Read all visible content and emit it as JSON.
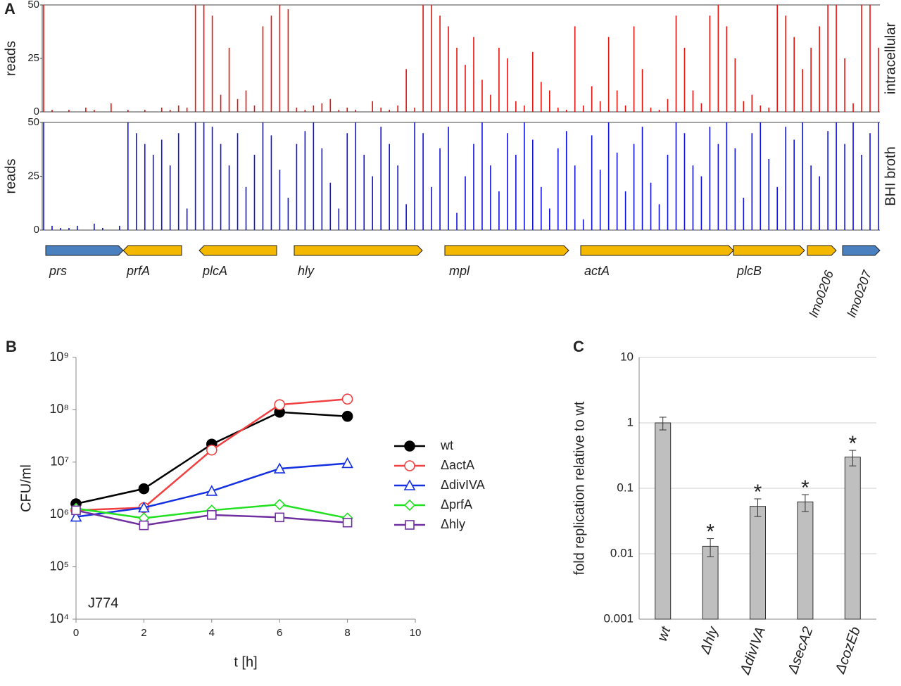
{
  "chart_data": [
    {
      "type": "track",
      "panel": "A",
      "ylabel": "reads",
      "ylim": [
        0,
        50
      ],
      "yticks": [
        0,
        25,
        50
      ],
      "series": [
        {
          "name": "intracellular",
          "color": "#e8120c",
          "values": [
            50,
            1,
            0,
            1,
            0,
            2,
            1,
            0,
            4,
            0,
            1,
            0,
            1,
            0,
            2,
            1,
            3,
            2,
            50,
            50,
            45,
            8,
            30,
            6,
            10,
            3,
            40,
            45,
            50,
            48,
            2,
            1,
            3,
            4,
            6,
            1,
            2,
            1,
            0,
            5,
            2,
            1,
            3,
            20,
            2,
            50,
            50,
            45,
            40,
            30,
            22,
            35,
            15,
            8,
            30,
            25,
            5,
            3,
            28,
            14,
            10,
            2,
            1,
            40,
            3,
            12,
            5,
            35,
            10,
            3,
            40,
            20,
            2,
            1,
            6,
            45,
            30,
            10,
            4,
            45,
            50,
            40,
            25,
            5,
            8,
            3,
            2,
            50,
            45,
            35,
            20,
            30,
            40,
            50,
            50,
            25,
            4,
            50,
            50,
            30
          ]
        },
        {
          "name": "BHI broth",
          "color": "#1010e0",
          "values": [
            50,
            2,
            1,
            1,
            2,
            0,
            3,
            1,
            0,
            2,
            50,
            45,
            40,
            35,
            42,
            30,
            45,
            10,
            50,
            50,
            48,
            40,
            30,
            45,
            20,
            35,
            50,
            44,
            28,
            15,
            40,
            46,
            50,
            38,
            22,
            10,
            45,
            50,
            35,
            25,
            48,
            40,
            30,
            12,
            50,
            45,
            20,
            38,
            48,
            8,
            25,
            40,
            50,
            30,
            18,
            45,
            35,
            50,
            42,
            20,
            10,
            38,
            46,
            30,
            5,
            44,
            28,
            50,
            36,
            18,
            40,
            48,
            22,
            12,
            35,
            50,
            45,
            30,
            25,
            48,
            40,
            50,
            38,
            15,
            45,
            50,
            33,
            20,
            48,
            42,
            50,
            30,
            25,
            46,
            50,
            40,
            50,
            35,
            45,
            50
          ]
        }
      ],
      "genes": [
        {
          "label": "prs",
          "color": "#4a7fc0",
          "direction": "right"
        },
        {
          "label": "prfA",
          "color": "#f5b800",
          "direction": "left"
        },
        {
          "label": "plcA",
          "color": "#f5b800",
          "direction": "left"
        },
        {
          "label": "hly",
          "color": "#f5b800",
          "direction": "right"
        },
        {
          "label": "mpl",
          "color": "#f5b800",
          "direction": "right"
        },
        {
          "label": "actA",
          "color": "#f5b800",
          "direction": "right"
        },
        {
          "label": "plcB",
          "color": "#f5b800",
          "direction": "right"
        },
        {
          "label": "lmo0206",
          "color": "#f5b800",
          "direction": "right"
        },
        {
          "label": "lmo0207",
          "color": "#4a7fc0",
          "direction": "right"
        }
      ]
    },
    {
      "type": "line",
      "panel": "B",
      "xlabel": "t [h]",
      "ylabel": "CFU/ml",
      "annotation": "J774",
      "log": true,
      "x": [
        0,
        2,
        4,
        6,
        8
      ],
      "xlim": [
        0,
        10
      ],
      "xticks": [
        0,
        2,
        4,
        6,
        8,
        10
      ],
      "ylim": [
        10000,
        1000000000
      ],
      "yticks": [
        {
          "value": 10000,
          "label": "10⁴"
        },
        {
          "value": 100000,
          "label": "10⁵"
        },
        {
          "value": 1000000,
          "label": "10⁶"
        },
        {
          "value": 10000000,
          "label": "10⁷"
        },
        {
          "value": 100000000,
          "label": "10⁸"
        },
        {
          "value": 1000000000,
          "label": "10⁹"
        }
      ],
      "series": [
        {
          "name": "wt",
          "color": "#000000",
          "marker": "circle",
          "filled": true,
          "values": [
            1600000,
            3100000,
            22000000,
            90000000,
            75000000
          ]
        },
        {
          "name": "ΔactA",
          "color": "#f04040",
          "marker": "circle",
          "filled": false,
          "values": [
            1200000,
            1350000,
            17000000,
            125000000,
            160000000
          ]
        },
        {
          "name": "ΔdivIVA",
          "color": "#1530e0",
          "marker": "triangle",
          "filled": false,
          "values": [
            900000,
            1350000,
            2800000,
            7500000,
            9500000
          ]
        },
        {
          "name": "ΔprfA",
          "color": "#20e020",
          "marker": "diamond",
          "filled": false,
          "values": [
            1300000,
            850000,
            1200000,
            1550000,
            850000
          ]
        },
        {
          "name": "Δhly",
          "color": "#7030a0",
          "marker": "square",
          "filled": false,
          "values": [
            1200000,
            620000,
            980000,
            880000,
            700000
          ]
        }
      ]
    },
    {
      "type": "bar",
      "panel": "C",
      "ylabel": "fold replication relative to wt",
      "log": true,
      "grid": true,
      "color": "#bfbfbf",
      "categories": [
        "wt",
        "Δhly",
        "ΔdivIVA",
        "ΔsecA2",
        "ΔcozEb"
      ],
      "values": [
        1,
        0.013,
        0.053,
        0.062,
        0.3
      ],
      "errors": [
        0.22,
        0.004,
        0.016,
        0.018,
        0.08
      ],
      "significance": [
        null,
        "*",
        "*",
        "*",
        "*"
      ],
      "ylim": [
        0.001,
        10
      ],
      "yticks": [
        0.001,
        0.01,
        0.1,
        1,
        10
      ]
    }
  ]
}
